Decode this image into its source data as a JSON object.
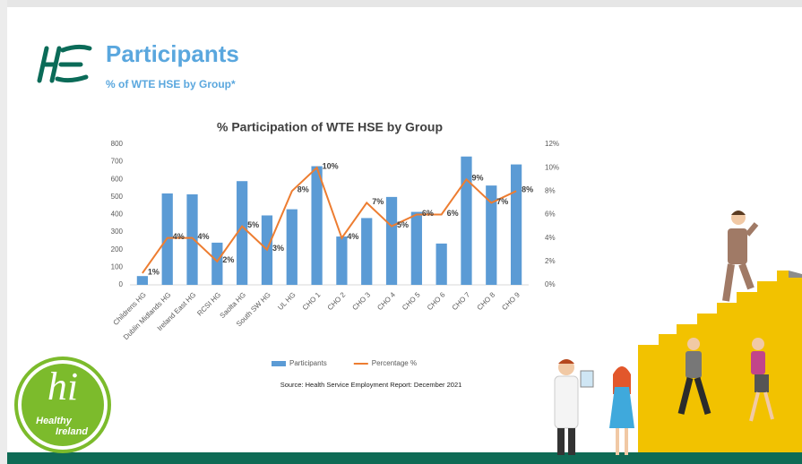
{
  "header": {
    "title": "Participants",
    "subtitle": "% of WTE HSE by Group*"
  },
  "chart_data": {
    "type": "bar",
    "title": "% Participation of WTE HSE by Group",
    "categories": [
      "Childrens HG",
      "Dublin Midlands HG",
      "Ireland East HG",
      "RCSI HG",
      "Saolta HG",
      "South SW HG",
      "UL HG",
      "CHO 1",
      "CHO 2",
      "CHO 3",
      "CHO 4",
      "CHO 5",
      "CHO 6",
      "CHO 7",
      "CHO 8",
      "CHO 9"
    ],
    "series": [
      {
        "name": "Participants",
        "type": "bar",
        "color": "#5b9bd5",
        "values": [
          50,
          520,
          515,
          240,
          590,
          395,
          430,
          675,
          275,
          380,
          500,
          415,
          235,
          730,
          565,
          685
        ]
      },
      {
        "name": "Percentage %",
        "type": "line",
        "axis": "y2",
        "color": "#ed7d31",
        "values": [
          1,
          4,
          4,
          2,
          5,
          3,
          8,
          10,
          4,
          7,
          5,
          6,
          6,
          9,
          7,
          8
        ],
        "value_labels": [
          "1%",
          "4%",
          "4%",
          "2%",
          "5%",
          "3%",
          "8%",
          "10%",
          "4%",
          "7%",
          "5%",
          "6%",
          "6%",
          "9%",
          "7%",
          "8%"
        ]
      }
    ],
    "ylim": [
      0,
      800
    ],
    "yticks": [
      0,
      100,
      200,
      300,
      400,
      500,
      600,
      700,
      800
    ],
    "y2lim": [
      0,
      12
    ],
    "y2ticks": [
      {
        "value": 0,
        "label": "0%"
      },
      {
        "value": 2,
        "label": "2%"
      },
      {
        "value": 4,
        "label": "4%"
      },
      {
        "value": 6,
        "label": "6%"
      },
      {
        "value": 8,
        "label": "8%"
      },
      {
        "value": 10,
        "label": "10%"
      },
      {
        "value": 12,
        "label": "12%"
      }
    ],
    "legend": "bottom",
    "grid": false
  },
  "footer": {
    "source": "Source: Health Service Employment Report: December 2021",
    "logo_hi": "hi",
    "logo_healthy": "Healthy",
    "logo_ireland": "Ireland"
  }
}
